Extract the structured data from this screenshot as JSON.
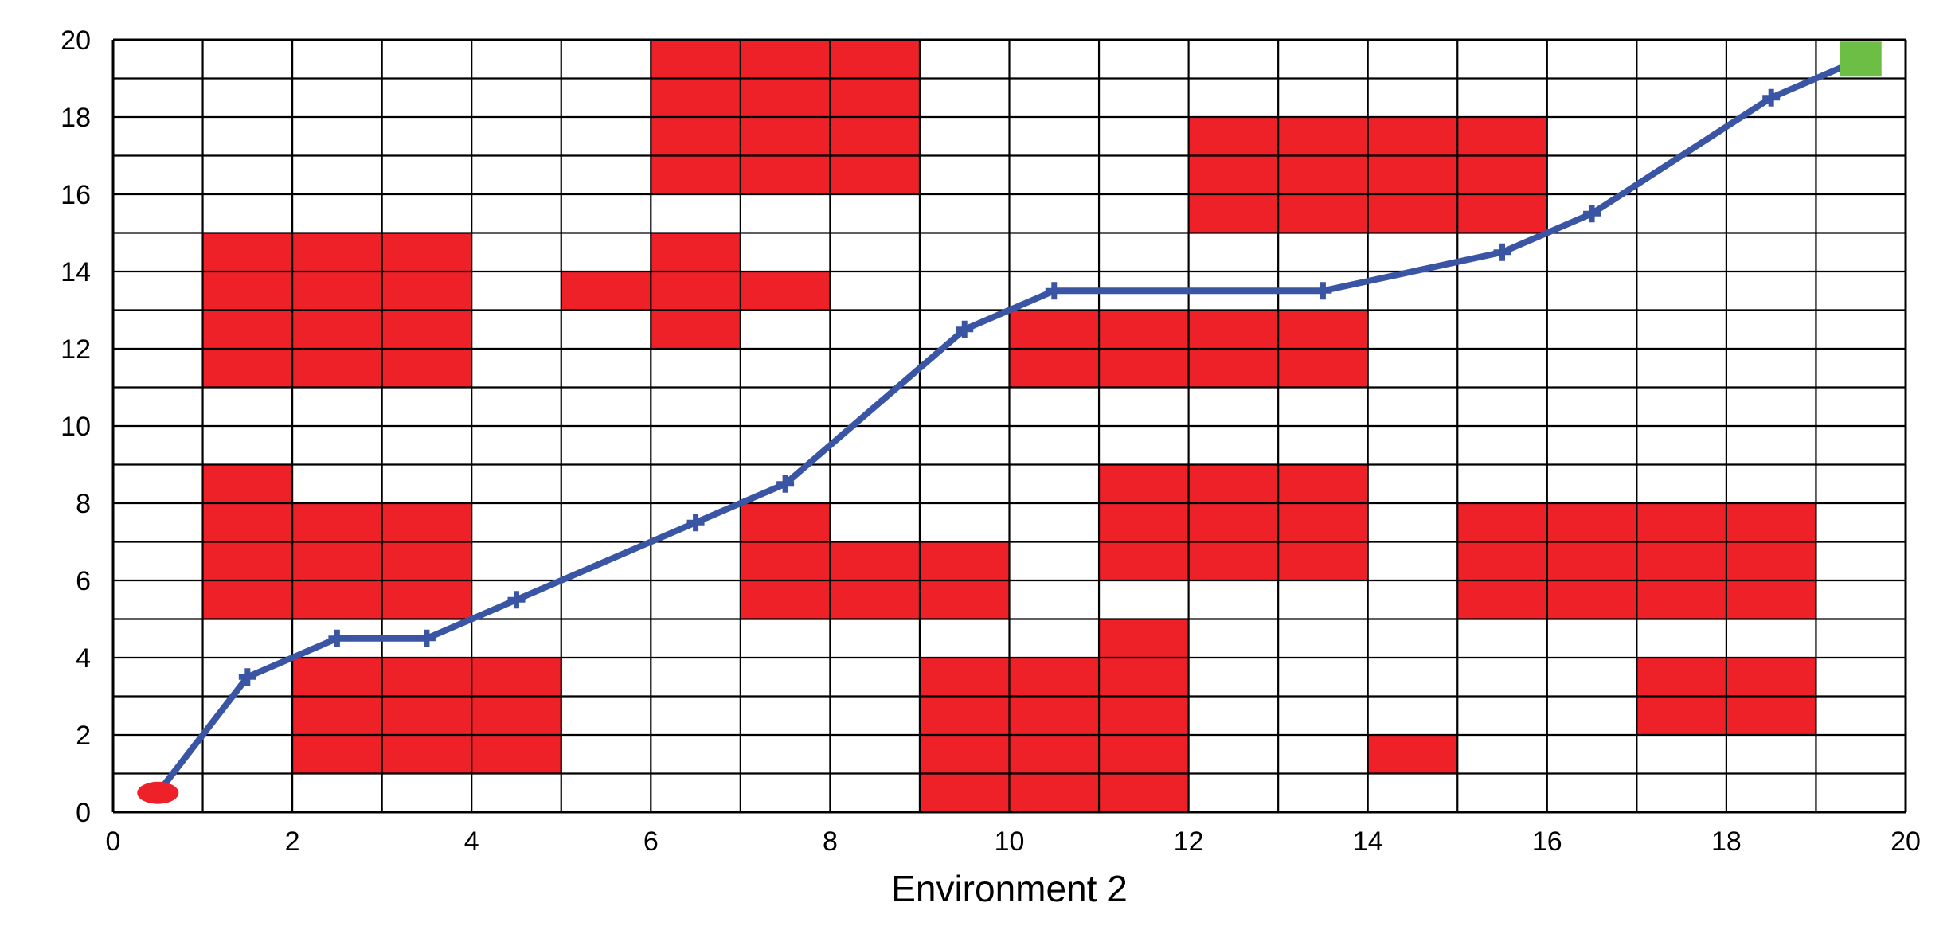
{
  "chart_data": {
    "type": "grid-path",
    "xlabel": "Environment 2",
    "ylabel": "",
    "xlim": [
      0,
      20
    ],
    "ylim": [
      0,
      20
    ],
    "grid": "on",
    "xticks": [
      "0",
      "2",
      "4",
      "6",
      "8",
      "10",
      "12",
      "14",
      "16",
      "18",
      "20"
    ],
    "yticks": [
      "0",
      "2",
      "4",
      "6",
      "8",
      "10",
      "12",
      "14",
      "16",
      "18",
      "20"
    ],
    "colors": {
      "obstacle": "#ee2129",
      "path": "#3a55a4",
      "start": "#ee2129",
      "goal": "#6cbe45",
      "grid": "#000000"
    },
    "obstacles": [
      {
        "x": [
          6,
          9
        ],
        "y": [
          16,
          20
        ]
      },
      {
        "x": [
          12,
          16
        ],
        "y": [
          15,
          18
        ]
      },
      {
        "x": [
          1,
          4
        ],
        "y": [
          11,
          15
        ]
      },
      {
        "x": [
          6,
          7
        ],
        "y": [
          12,
          15
        ]
      },
      {
        "x": [
          5,
          8
        ],
        "y": [
          13,
          14
        ]
      },
      {
        "x": [
          10,
          14
        ],
        "y": [
          11,
          13
        ]
      },
      {
        "x": [
          1,
          2
        ],
        "y": [
          5,
          9
        ]
      },
      {
        "x": [
          1,
          4
        ],
        "y": [
          5,
          8
        ]
      },
      {
        "x": [
          7,
          8
        ],
        "y": [
          5,
          8
        ]
      },
      {
        "x": [
          7,
          10
        ],
        "y": [
          5,
          7
        ]
      },
      {
        "x": [
          11,
          14
        ],
        "y": [
          6,
          9
        ]
      },
      {
        "x": [
          15,
          19
        ],
        "y": [
          5,
          8
        ]
      },
      {
        "x": [
          2,
          5
        ],
        "y": [
          1,
          4
        ]
      },
      {
        "x": [
          9,
          12
        ],
        "y": [
          0,
          4
        ]
      },
      {
        "x": [
          11,
          12
        ],
        "y": [
          0,
          5
        ]
      },
      {
        "x": [
          14,
          15
        ],
        "y": [
          1,
          2
        ]
      },
      {
        "x": [
          17,
          19
        ],
        "y": [
          2,
          4
        ]
      }
    ],
    "path": {
      "x": [
        0.5,
        1.5,
        2.5,
        3.5,
        4.5,
        6.5,
        7.5,
        9.5,
        10.5,
        13.5,
        15.5,
        16.5,
        18.5,
        19.5
      ],
      "y": [
        0.5,
        3.5,
        4.5,
        4.5,
        5.5,
        7.5,
        8.5,
        12.5,
        13.5,
        13.5,
        14.5,
        15.5,
        18.5,
        19.5
      ]
    },
    "start": {
      "x": 0.5,
      "y": 0.5
    },
    "goal": {
      "x": 19.5,
      "y": 19.5
    }
  }
}
